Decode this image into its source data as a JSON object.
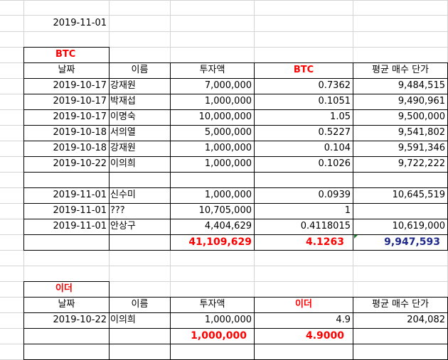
{
  "report_date": "2019-11-01",
  "btc": {
    "section_title": "BTC",
    "headers": [
      "날짜",
      "이름",
      "투자액",
      "BTC",
      "평균 매수 단가"
    ],
    "rows": [
      [
        "2019-10-17",
        "강재원",
        "7,000,000",
        "0.7362",
        "9,484,515"
      ],
      [
        "2019-10-17",
        "박재섭",
        "1,000,000",
        "0.1051",
        "9,490,961"
      ],
      [
        "2019-10-17",
        "이명숙",
        "10,000,000",
        "1.05",
        "9,500,000"
      ],
      [
        "2019-10-18",
        "서의열",
        "5,000,000",
        "0.5227",
        "9,541,802"
      ],
      [
        "2019-10-18",
        "강재원",
        "1,000,000",
        "0.104",
        "9,591,346"
      ],
      [
        "2019-10-22",
        "이의희",
        "1,000,000",
        "0.1026",
        "9,722,222"
      ]
    ],
    "rows2": [
      [
        "2019-11-01",
        "신수미",
        "1,000,000",
        "0.0939",
        "10,645,519"
      ],
      [
        "2019-11-01",
        "???",
        "10,705,000",
        "1",
        ""
      ],
      [
        "2019-11-01",
        "안상구",
        "4,404,629",
        "0.4118015",
        "10,619,000"
      ]
    ],
    "total_investment": "41,109,629",
    "total_coin": "4.1263",
    "total_avg_price": "9,947,593"
  },
  "eth": {
    "section_title": "이더",
    "headers": [
      "날짜",
      "이름",
      "투자액",
      "이더",
      "평균 매수 단가"
    ],
    "rows": [
      [
        "2019-10-22",
        "이의희",
        "1,000,000",
        "4.9",
        "204,082"
      ]
    ],
    "total_investment": "1,000,000",
    "total_coin": "4.9000"
  },
  "colors": {
    "gridline": "#d4d4d4",
    "border": "#000000",
    "accent_red": "#ff0000",
    "accent_navy": "#1f2a8c",
    "marker_green": "#1a7f2b"
  }
}
